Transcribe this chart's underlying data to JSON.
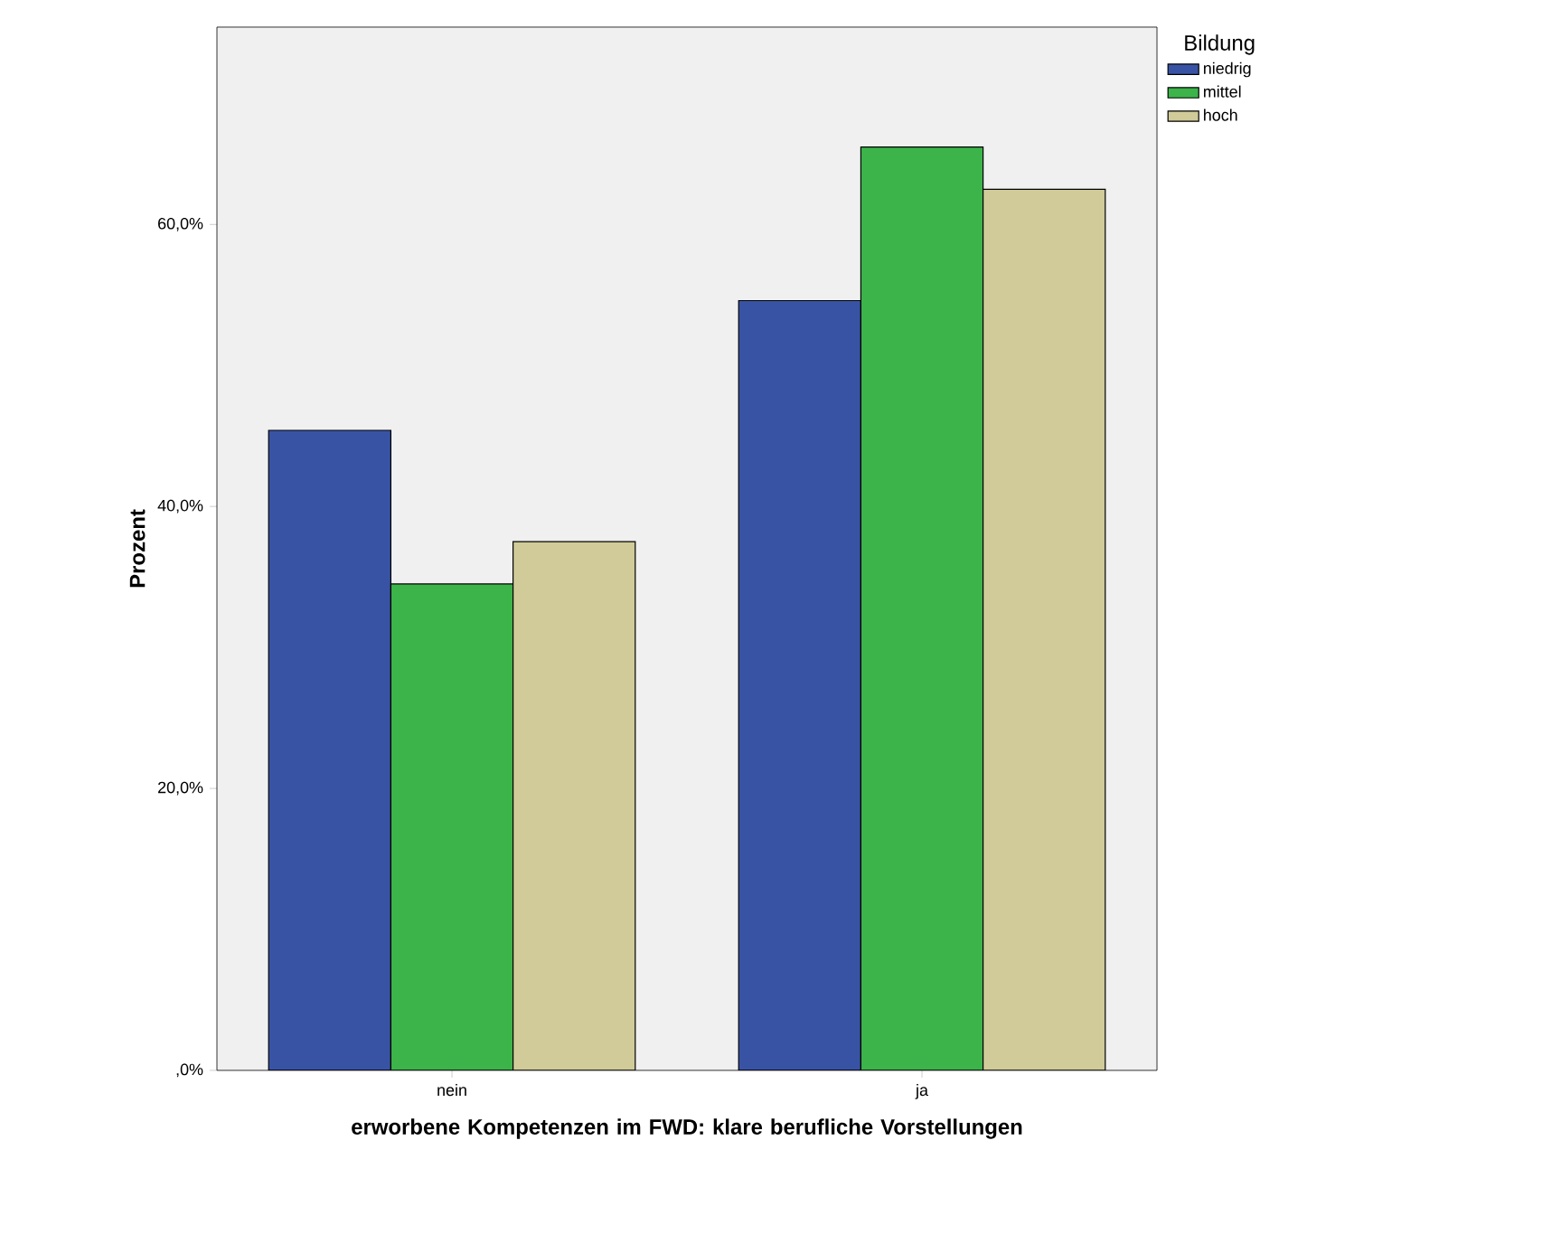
{
  "chart_data": {
    "type": "bar",
    "xlabel": "erworbene Kompetenzen im FWD: klare berufliche Vorstellungen",
    "ylabel": "Prozent",
    "legend_title": "Bildung",
    "legend": "right",
    "categories": [
      "nein",
      "ja"
    ],
    "series": [
      {
        "name": "niedrig",
        "color": "#3953a4",
        "values": [
          45.4,
          54.6
        ]
      },
      {
        "name": "mittel",
        "color": "#3cb44a",
        "values": [
          34.5,
          65.5
        ]
      },
      {
        "name": "hoch",
        "color": "#d0cb98",
        "values": [
          37.5,
          62.5
        ]
      }
    ],
    "ylim": [
      0,
      74
    ],
    "yticks": [
      {
        "value": 0,
        "label": ",0%"
      },
      {
        "value": 20,
        "label": "20,0%"
      },
      {
        "value": 40,
        "label": "40,0%"
      },
      {
        "value": 60,
        "label": "60,0%"
      }
    ]
  }
}
